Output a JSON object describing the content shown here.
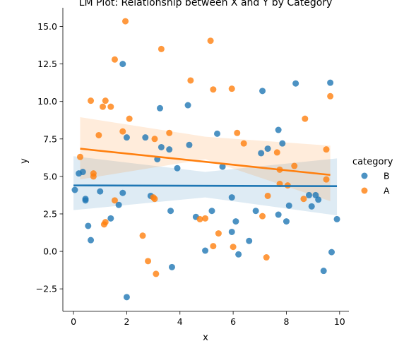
{
  "chart_data": {
    "type": "scatter",
    "title": "LM Plot: Relationship between X and Y by Category",
    "xlabel": "x",
    "ylabel": "y",
    "xlim": [
      -0.4,
      10.35
    ],
    "ylim": [
      -4.0,
      16.25
    ],
    "xticks": [
      "0",
      "2",
      "4",
      "6",
      "8",
      "10"
    ],
    "xtick_values": [
      0,
      2,
      4,
      6,
      8,
      10
    ],
    "yticks": [
      "−2.5",
      "0.0",
      "2.5",
      "5.0",
      "7.5",
      "10.0",
      "12.5",
      "15.0"
    ],
    "ytick_values": [
      -2.5,
      0,
      2.5,
      5,
      7.5,
      10,
      12.5,
      15
    ],
    "grid": false,
    "legend": {
      "title": "category",
      "placement": "right"
    },
    "series": [
      {
        "name": "B",
        "color": "#1f77b4",
        "regression": {
          "x0": 0.0,
          "y0": 4.4,
          "x1": 9.9,
          "y1": 4.35
        },
        "ci_band": {
          "upper": [
            6.35,
            5.3,
            6.2
          ],
          "lower": [
            2.75,
            3.6,
            2.4
          ]
        },
        "points": [
          [
            0.05,
            4.1
          ],
          [
            0.2,
            5.2
          ],
          [
            0.35,
            5.3
          ],
          [
            0.45,
            3.5
          ],
          [
            0.45,
            3.4
          ],
          [
            0.55,
            1.7
          ],
          [
            0.65,
            0.75
          ],
          [
            1.0,
            4.0
          ],
          [
            1.4,
            2.2
          ],
          [
            1.7,
            3.1
          ],
          [
            1.85,
            12.5
          ],
          [
            1.85,
            3.9
          ],
          [
            2.0,
            7.6
          ],
          [
            2.0,
            -3.05
          ],
          [
            2.7,
            7.6
          ],
          [
            2.9,
            3.7
          ],
          [
            3.15,
            6.15
          ],
          [
            3.25,
            9.55
          ],
          [
            3.3,
            6.95
          ],
          [
            3.6,
            6.8
          ],
          [
            3.65,
            2.7
          ],
          [
            3.7,
            -1.05
          ],
          [
            3.9,
            5.55
          ],
          [
            4.3,
            9.75
          ],
          [
            4.35,
            7.1
          ],
          [
            4.6,
            2.3
          ],
          [
            4.95,
            0.05
          ],
          [
            5.2,
            2.7
          ],
          [
            5.4,
            7.85
          ],
          [
            5.6,
            5.65
          ],
          [
            5.95,
            3.6
          ],
          [
            5.95,
            1.3
          ],
          [
            6.1,
            2.0
          ],
          [
            6.2,
            -0.2
          ],
          [
            6.6,
            0.7
          ],
          [
            6.85,
            2.7
          ],
          [
            7.05,
            6.55
          ],
          [
            7.1,
            10.7
          ],
          [
            7.3,
            6.85
          ],
          [
            7.7,
            2.45
          ],
          [
            7.7,
            8.1
          ],
          [
            7.85,
            7.2
          ],
          [
            8.0,
            2.0
          ],
          [
            8.1,
            3.05
          ],
          [
            8.35,
            11.2
          ],
          [
            8.85,
            3.75
          ],
          [
            8.95,
            3.0
          ],
          [
            9.1,
            3.75
          ],
          [
            9.2,
            3.45
          ],
          [
            9.4,
            -1.3
          ],
          [
            9.65,
            11.25
          ],
          [
            9.7,
            -0.05
          ],
          [
            9.9,
            2.15
          ]
        ]
      },
      {
        "name": "A",
        "color": "#ff7f0e",
        "regression": {
          "x0": 0.25,
          "y0": 6.85,
          "x1": 9.65,
          "y1": 5.1
        },
        "ci_band": {
          "upper": [
            8.95,
            7.65,
            7.05
          ],
          "lower": [
            4.8,
            6.15,
            3.35
          ]
        },
        "points": [
          [
            0.25,
            6.3
          ],
          [
            0.65,
            10.05
          ],
          [
            0.75,
            5.2
          ],
          [
            0.75,
            5.0
          ],
          [
            0.95,
            7.75
          ],
          [
            1.1,
            9.65
          ],
          [
            1.15,
            1.8
          ],
          [
            1.2,
            10.05
          ],
          [
            1.2,
            1.95
          ],
          [
            1.4,
            9.65
          ],
          [
            1.55,
            12.8
          ],
          [
            1.55,
            3.4
          ],
          [
            1.85,
            8.0
          ],
          [
            1.95,
            15.35
          ],
          [
            2.1,
            8.85
          ],
          [
            2.6,
            1.05
          ],
          [
            2.8,
            -0.65
          ],
          [
            3.0,
            3.6
          ],
          [
            3.05,
            3.5
          ],
          [
            3.05,
            7.5
          ],
          [
            3.1,
            -1.5
          ],
          [
            3.3,
            13.5
          ],
          [
            3.6,
            7.9
          ],
          [
            4.4,
            11.4
          ],
          [
            4.75,
            2.15
          ],
          [
            4.95,
            2.2
          ],
          [
            5.15,
            14.05
          ],
          [
            5.25,
            10.8
          ],
          [
            5.25,
            0.35
          ],
          [
            5.45,
            1.2
          ],
          [
            5.95,
            10.85
          ],
          [
            6.0,
            0.3
          ],
          [
            6.15,
            7.9
          ],
          [
            6.4,
            7.2
          ],
          [
            7.1,
            2.35
          ],
          [
            7.25,
            -0.4
          ],
          [
            7.3,
            3.7
          ],
          [
            7.65,
            6.6
          ],
          [
            7.75,
            5.45
          ],
          [
            7.75,
            4.5
          ],
          [
            8.05,
            4.4
          ],
          [
            8.3,
            5.7
          ],
          [
            8.65,
            3.5
          ],
          [
            8.7,
            8.85
          ],
          [
            9.5,
            6.8
          ],
          [
            9.5,
            4.8
          ],
          [
            9.65,
            10.35
          ]
        ]
      }
    ]
  }
}
